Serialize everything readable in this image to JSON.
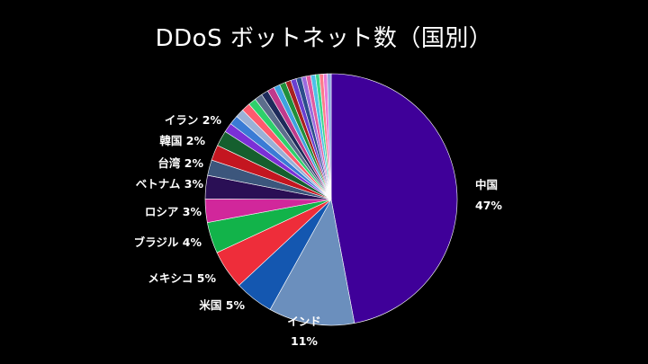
{
  "title": "DDoS ボットネット数（国別）",
  "chart_data": {
    "type": "pie",
    "title": "DDoS ボットネット数（国別）",
    "slices": [
      {
        "label": "中国",
        "value": 47,
        "value_label": "47%",
        "color": "#3f0099"
      },
      {
        "label": "インド",
        "value": 11,
        "value_label": "11%",
        "color": "#6b8fbd"
      },
      {
        "label": "米国",
        "value": 5,
        "value_label": "5%",
        "color": "#1457b0"
      },
      {
        "label": "メキシコ",
        "value": 5,
        "value_label": "5%",
        "color": "#ee2d3a"
      },
      {
        "label": "ブラジル",
        "value": 4,
        "value_label": "4%",
        "color": "#12b34a"
      },
      {
        "label": "ロシア",
        "value": 3,
        "value_label": "3%",
        "color": "#d1279b"
      },
      {
        "label": "ベトナム",
        "value": 3,
        "value_label": "3%",
        "color": "#2a0f55"
      },
      {
        "label": "台湾",
        "value": 2,
        "value_label": "2%",
        "color": "#3c567c"
      },
      {
        "label": "韓国",
        "value": 2,
        "value_label": "2%",
        "color": "#c41620"
      },
      {
        "label": "イラン",
        "value": 2,
        "value_label": "2%",
        "color": "#155f2e"
      },
      {
        "label": "",
        "value": 1.2,
        "value_label": "",
        "color": "#7b2fd6"
      },
      {
        "label": "",
        "value": 1.2,
        "value_label": "",
        "color": "#3a7bd5"
      },
      {
        "label": "",
        "value": 1.1,
        "value_label": "",
        "color": "#9ab0d6"
      },
      {
        "label": "",
        "value": 1.1,
        "value_label": "",
        "color": "#ff5a6e"
      },
      {
        "label": "",
        "value": 1.0,
        "value_label": "",
        "color": "#2ed06b"
      },
      {
        "label": "",
        "value": 1.0,
        "value_label": "",
        "color": "#5c6e8c"
      },
      {
        "label": "",
        "value": 0.9,
        "value_label": "",
        "color": "#1d2a5a"
      },
      {
        "label": "",
        "value": 0.9,
        "value_label": "",
        "color": "#c03a8c"
      },
      {
        "label": "",
        "value": 0.8,
        "value_label": "",
        "color": "#3fa2e0"
      },
      {
        "label": "",
        "value": 0.8,
        "value_label": "",
        "color": "#1f8f3a"
      },
      {
        "label": "",
        "value": 0.7,
        "value_label": "",
        "color": "#a82020"
      },
      {
        "label": "",
        "value": 0.7,
        "value_label": "",
        "color": "#6a3fd0"
      },
      {
        "label": "",
        "value": 0.7,
        "value_label": "",
        "color": "#2b4c8c"
      },
      {
        "label": "",
        "value": 0.6,
        "value_label": "",
        "color": "#9b6bde"
      },
      {
        "label": "",
        "value": 0.6,
        "value_label": "",
        "color": "#e05aa0"
      },
      {
        "label": "",
        "value": 0.6,
        "value_label": "",
        "color": "#4ec0e8"
      },
      {
        "label": "",
        "value": 0.5,
        "value_label": "",
        "color": "#3bd88a"
      },
      {
        "label": "",
        "value": 0.5,
        "value_label": "",
        "color": "#ff7b8a"
      },
      {
        "label": "",
        "value": 0.5,
        "value_label": "",
        "color": "#e87ad8"
      },
      {
        "label": "",
        "value": 0.5,
        "value_label": "",
        "color": "#8fa8e0"
      }
    ]
  }
}
